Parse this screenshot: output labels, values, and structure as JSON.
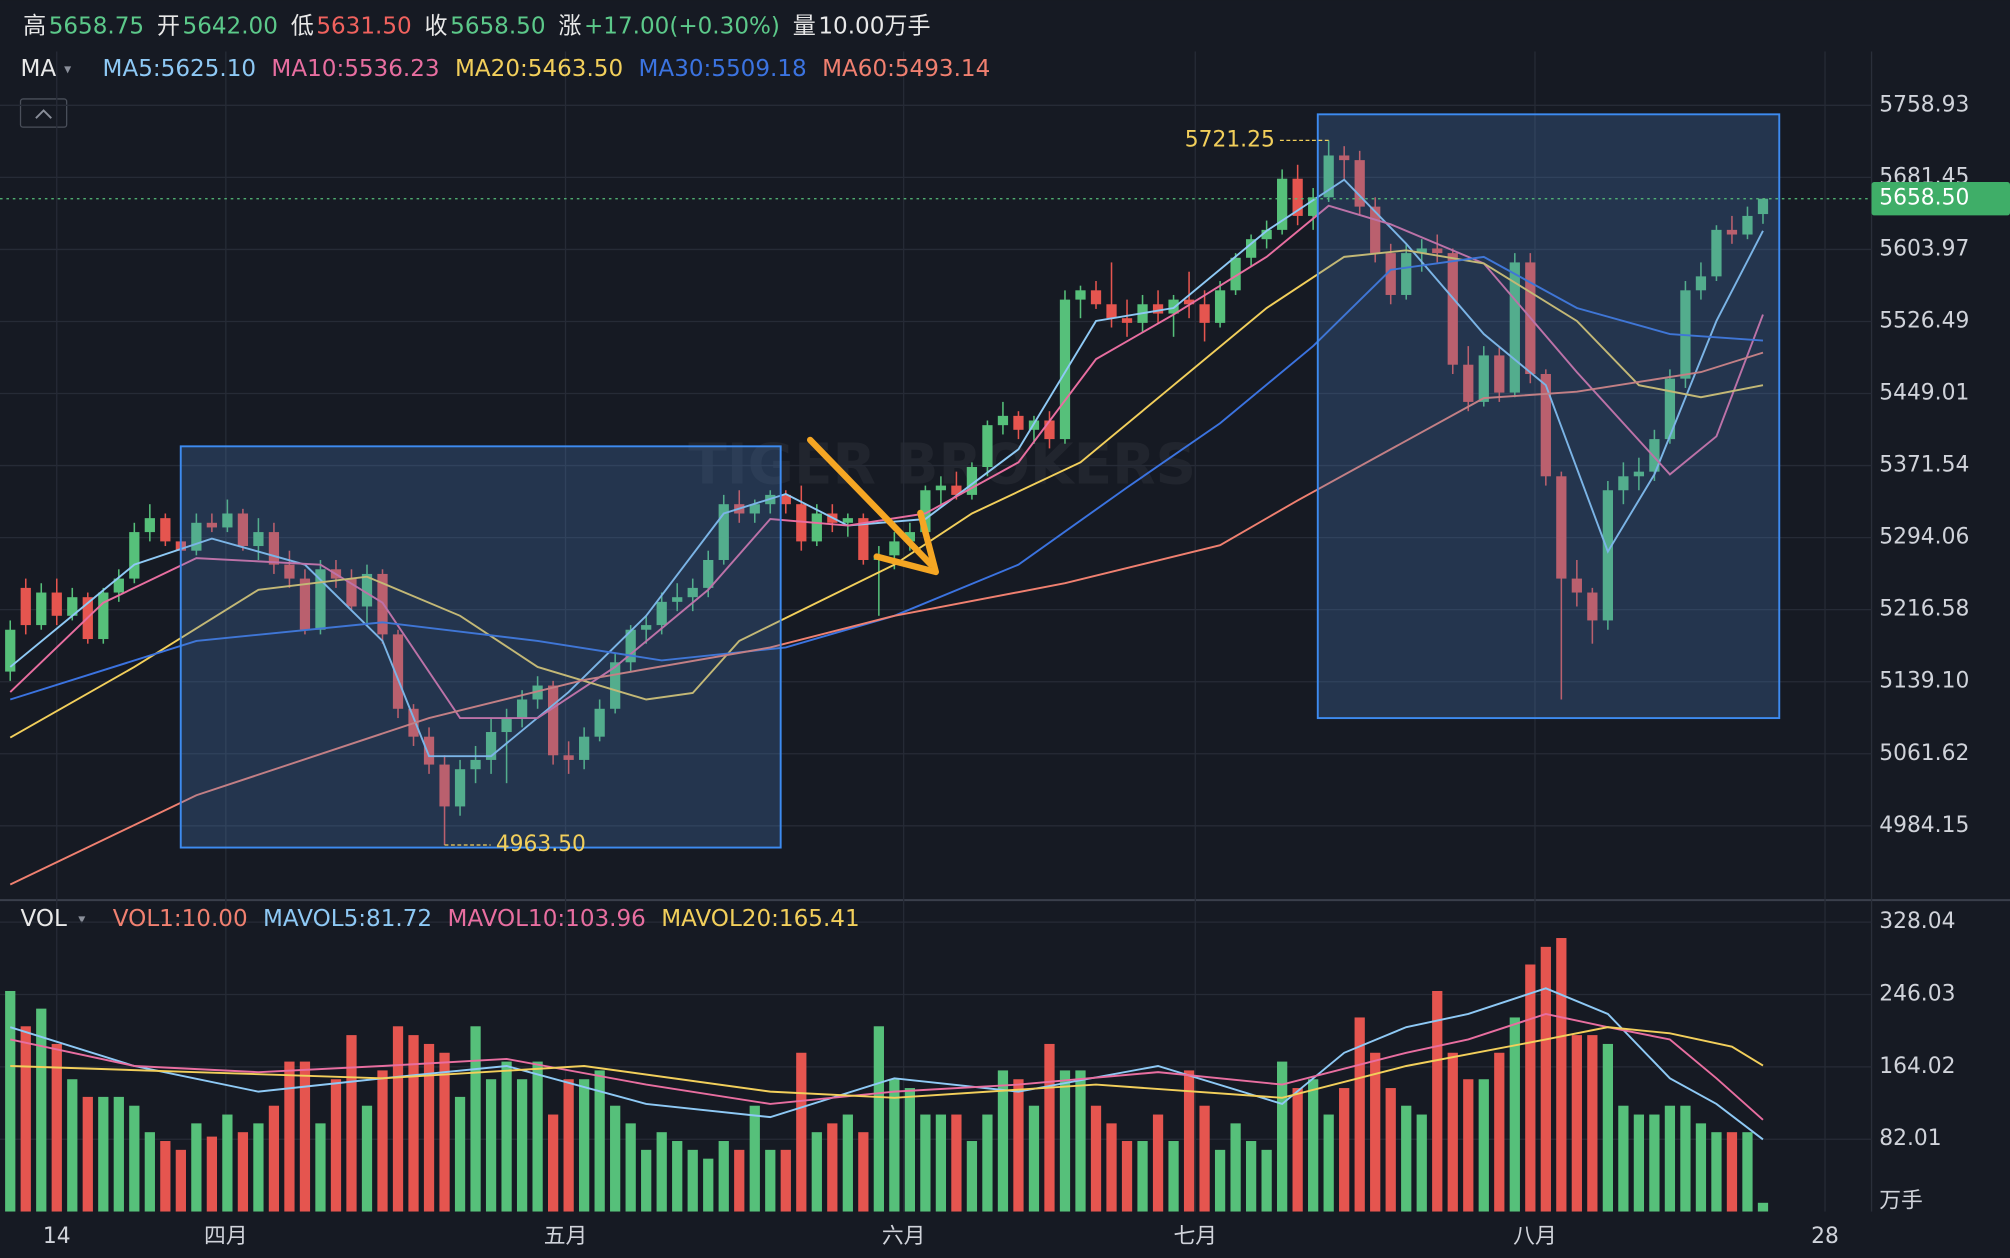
{
  "chart_data": {
    "type": "candlestick",
    "header": [
      {
        "label": "高",
        "value": "5658.75",
        "color": "#5cc98a"
      },
      {
        "label": "开",
        "value": "5642.00",
        "color": "#5cc98a"
      },
      {
        "label": "低",
        "value": "5631.50",
        "color": "#f0625e"
      },
      {
        "label": "收",
        "value": "5658.50",
        "color": "#5cc98a"
      },
      {
        "label": "涨",
        "value": "+17.00(+0.30%)",
        "color": "#5cc98a"
      },
      {
        "label": "量",
        "value": "10.00万手",
        "color": "#e8e8e8"
      }
    ],
    "indicator": "MA",
    "watermark": "TIGER BROKERS",
    "up_color": "#56c07a",
    "down_color": "#e5554f",
    "xlim": [
      -0.66,
      120
    ],
    "xticks": [
      {
        "value": 3,
        "label": "14"
      },
      {
        "value": 13.9,
        "label": "四月"
      },
      {
        "value": 35.8,
        "label": "五月"
      },
      {
        "value": 57.6,
        "label": "六月"
      },
      {
        "value": 76.4,
        "label": "七月"
      },
      {
        "value": 98.3,
        "label": "八月"
      },
      {
        "value": 117,
        "label": "28"
      }
    ],
    "ylim": [
      4907,
      5816.8
    ],
    "yticks": [
      5758.93,
      5681.45,
      5603.97,
      5526.49,
      5449.01,
      5371.54,
      5294.06,
      5216.58,
      {
        "value": 5139.1,
        "label": "5139.10"
      },
      5061.62,
      4984.15
    ],
    "grid": true,
    "last_price": {
      "value": 5658.5,
      "label": "5658.50"
    },
    "annotations": [
      {
        "x": 85,
        "value": 5721.25,
        "label": "5721.25"
      },
      {
        "x": 28,
        "value": 4963.5,
        "label": "4963.50"
      }
    ],
    "open": [
      5150,
      5240,
      5200,
      5235,
      5210,
      5230,
      5185,
      5235,
      5250,
      5300,
      5315,
      5290,
      5280,
      5310,
      5305,
      5320,
      5285,
      5300,
      5265,
      5250,
      5195,
      5260,
      5250,
      5220,
      5255,
      5190,
      5110,
      5080,
      5050,
      5005,
      5045,
      5055,
      5085,
      5100,
      5120,
      5135,
      5060,
      5055,
      5080,
      5110,
      5160,
      5195,
      5200,
      5225,
      5230,
      5240,
      5270,
      5330,
      5320,
      5330,
      5340,
      5330,
      5290,
      5320,
      5310,
      5315,
      5270,
      5275,
      5290,
      5300,
      5345,
      5350,
      5340,
      5370,
      5415,
      5425,
      5410,
      5420,
      5400,
      5550,
      5560,
      5545,
      5530,
      5525,
      5545,
      5535,
      5550,
      5545,
      5525,
      5560,
      5595,
      5615,
      5625,
      5680,
      5640,
      5660,
      5705,
      5700,
      5650,
      5600,
      5555,
      5600,
      5605,
      5600,
      5480,
      5440,
      5490,
      5450,
      5590,
      5470,
      5360,
      5250,
      5235,
      5205,
      5345,
      5360,
      5365,
      5400,
      5465,
      5560,
      5575,
      5625,
      5620,
      5642
    ],
    "high": [
      5205,
      5250,
      5245,
      5250,
      5240,
      5235,
      5240,
      5260,
      5310,
      5330,
      5320,
      5300,
      5320,
      5320,
      5335,
      5325,
      5315,
      5310,
      5280,
      5260,
      5270,
      5270,
      5260,
      5265,
      5260,
      5195,
      5115,
      5090,
      5060,
      5055,
      5070,
      5100,
      5110,
      5130,
      5145,
      5140,
      5075,
      5090,
      5120,
      5170,
      5200,
      5210,
      5235,
      5245,
      5250,
      5280,
      5340,
      5345,
      5335,
      5345,
      5345,
      5350,
      5330,
      5330,
      5320,
      5320,
      5285,
      5300,
      5310,
      5350,
      5360,
      5365,
      5375,
      5420,
      5440,
      5430,
      5425,
      5430,
      5560,
      5565,
      5570,
      5590,
      5550,
      5555,
      5560,
      5555,
      5580,
      5560,
      5570,
      5600,
      5620,
      5635,
      5690,
      5695,
      5670,
      5721.25,
      5715,
      5710,
      5660,
      5610,
      5610,
      5615,
      5620,
      5605,
      5500,
      5500,
      5500,
      5600,
      5600,
      5475,
      5365,
      5270,
      5240,
      5355,
      5375,
      5380,
      5410,
      5475,
      5570,
      5590,
      5630,
      5640,
      5650,
      5658.75
    ],
    "low": [
      5140,
      5190,
      5195,
      5200,
      5205,
      5180,
      5180,
      5225,
      5245,
      5290,
      5285,
      5270,
      5275,
      5300,
      5300,
      5280,
      5270,
      5255,
      5240,
      5190,
      5190,
      5240,
      5215,
      5200,
      5180,
      5100,
      5070,
      5040,
      4963.5,
      4995,
      5030,
      5040,
      5030,
      5090,
      5110,
      5050,
      5040,
      5045,
      5075,
      5105,
      5150,
      5180,
      5190,
      5215,
      5215,
      5230,
      5265,
      5310,
      5310,
      5320,
      5320,
      5280,
      5285,
      5300,
      5295,
      5265,
      5210,
      5260,
      5280,
      5295,
      5330,
      5335,
      5335,
      5360,
      5405,
      5400,
      5395,
      5390,
      5395,
      5530,
      5540,
      5520,
      5510,
      5515,
      5525,
      5510,
      5530,
      5505,
      5520,
      5555,
      5585,
      5605,
      5620,
      5630,
      5625,
      5655,
      5680,
      5640,
      5590,
      5545,
      5550,
      5580,
      5590,
      5470,
      5430,
      5435,
      5440,
      5445,
      5460,
      5350,
      5120,
      5220,
      5180,
      5195,
      5330,
      5345,
      5355,
      5395,
      5455,
      5550,
      5570,
      5610,
      5615,
      5631.5
    ],
    "close": [
      5195,
      5200,
      5235,
      5210,
      5230,
      5185,
      5235,
      5250,
      5300,
      5315,
      5290,
      5280,
      5310,
      5305,
      5320,
      5285,
      5300,
      5265,
      5250,
      5195,
      5260,
      5250,
      5220,
      5255,
      5190,
      5110,
      5080,
      5050,
      5005,
      5045,
      5055,
      5085,
      5100,
      5120,
      5135,
      5060,
      5055,
      5080,
      5110,
      5160,
      5195,
      5200,
      5225,
      5230,
      5240,
      5270,
      5330,
      5320,
      5330,
      5340,
      5330,
      5290,
      5320,
      5310,
      5315,
      5270,
      5275,
      5290,
      5300,
      5345,
      5350,
      5340,
      5370,
      5415,
      5425,
      5410,
      5420,
      5400,
      5550,
      5560,
      5545,
      5530,
      5525,
      5545,
      5535,
      5550,
      5545,
      5525,
      5560,
      5595,
      5615,
      5625,
      5680,
      5640,
      5660,
      5705,
      5700,
      5650,
      5600,
      5555,
      5600,
      5605,
      5600,
      5480,
      5440,
      5490,
      5450,
      5590,
      5470,
      5360,
      5250,
      5235,
      5205,
      5345,
      5360,
      5365,
      5400,
      5465,
      5560,
      5575,
      5625,
      5620,
      5640,
      5658.5
    ],
    "ma_series": [
      {
        "label": "MA5:5625.10",
        "color": "#8ec9f5",
        "x": [
          0,
          8,
          13,
          19,
          24,
          27,
          31,
          36,
          41,
          46,
          50,
          54,
          59,
          65,
          70,
          75,
          81,
          86,
          90,
          95,
          99,
          103,
          106,
          110,
          113
        ],
        "values": [
          5155,
          5265,
          5293,
          5265,
          5183,
          5059,
          5059,
          5128,
          5210,
          5320,
          5341,
          5307,
          5314,
          5389,
          5527,
          5541,
          5624,
          5679,
          5610,
          5513,
          5458,
          5279,
          5362,
          5527,
          5624
        ]
      },
      {
        "label": "MA10:5536.23",
        "color": "#e86ea0",
        "x": [
          0,
          6,
          12,
          20,
          24,
          29,
          34,
          39,
          45,
          49,
          54,
          59,
          65,
          70,
          75,
          81,
          85,
          89,
          95,
          101,
          107,
          110,
          113
        ],
        "values": [
          5128,
          5224,
          5272,
          5265,
          5224,
          5100,
          5100,
          5155,
          5238,
          5314,
          5307,
          5320,
          5375,
          5486,
          5534,
          5596,
          5651,
          5631,
          5589,
          5472,
          5362,
          5403,
          5534
        ]
      },
      {
        "label": "MA20:5463.50",
        "color": "#f2cf5b",
        "x": [
          0,
          8,
          16,
          23,
          29,
          34,
          41,
          44,
          47,
          52,
          57,
          62,
          69,
          75,
          81,
          86,
          90,
          95,
          101,
          105,
          109,
          113
        ],
        "values": [
          5079,
          5155,
          5238,
          5252,
          5210,
          5155,
          5120,
          5127,
          5183,
          5224,
          5265,
          5320,
          5375,
          5458,
          5541,
          5596,
          5603,
          5589,
          5527,
          5458,
          5445,
          5458
        ]
      },
      {
        "label": "MA30:5509.18",
        "color": "#3b73e0",
        "x": [
          0,
          12,
          24,
          34,
          42,
          50,
          57,
          65,
          72,
          78,
          84,
          89,
          95,
          101,
          107,
          113
        ],
        "values": [
          5120,
          5183,
          5203,
          5183,
          5162,
          5176,
          5210,
          5265,
          5348,
          5417,
          5500,
          5582,
          5596,
          5541,
          5513,
          5506
        ]
      },
      {
        "label": "MA60:5493.14",
        "color": "#f08070",
        "x": [
          0,
          12,
          27,
          37,
          49,
          57,
          68,
          78,
          83,
          89,
          95,
          101,
          109,
          113
        ],
        "values": [
          4921,
          5017,
          5100,
          5141,
          5176,
          5210,
          5245,
          5286,
          5334,
          5389,
          5444,
          5451,
          5472,
          5493
        ]
      }
    ],
    "volume": {
      "indicator": "VOL",
      "unit": "万手",
      "legend": "VOL1:10.00",
      "legend_color": "#f08070",
      "ylim": [
        0,
        351.5
      ],
      "yticks": [
        328.04,
        246.03,
        164.02,
        82.01
      ],
      "values": [
        250,
        210,
        230,
        190,
        150,
        130,
        130,
        130,
        120,
        90,
        80,
        70,
        100,
        85,
        110,
        90,
        100,
        120,
        170,
        170,
        100,
        150,
        200,
        120,
        160,
        210,
        200,
        190,
        180,
        130,
        210,
        150,
        170,
        150,
        170,
        110,
        150,
        150,
        160,
        120,
        100,
        70,
        90,
        80,
        70,
        60,
        80,
        70,
        120,
        70,
        70,
        180,
        90,
        100,
        110,
        90,
        210,
        150,
        140,
        110,
        110,
        110,
        80,
        110,
        160,
        150,
        120,
        190,
        160,
        160,
        120,
        100,
        80,
        80,
        110,
        80,
        160,
        120,
        70,
        100,
        80,
        70,
        170,
        140,
        150,
        110,
        140,
        220,
        180,
        140,
        120,
        110,
        250,
        180,
        150,
        150,
        180,
        220,
        280,
        300,
        310,
        200,
        200,
        190,
        120,
        110,
        110,
        120,
        120,
        100,
        90,
        90,
        90,
        10
      ],
      "series": [
        {
          "label": "MAVOL5:81.72",
          "color": "#8ec9f5",
          "x": [
            0,
            8,
            16,
            24,
            32,
            41,
            49,
            57,
            65,
            74,
            82,
            86,
            90,
            94,
            99,
            103,
            107,
            110,
            113
          ],
          "values": [
            209,
            165,
            136,
            151,
            165,
            122,
            107,
            151,
            136,
            165,
            122,
            180,
            209,
            224,
            253,
            224,
            151,
            122,
            81.72
          ]
        },
        {
          "label": "MAVOL10:103.96",
          "color": "#e86ea0",
          "x": [
            0,
            8,
            16,
            24,
            32,
            41,
            49,
            57,
            65,
            74,
            82,
            90,
            94,
            99,
            103,
            107,
            110,
            113
          ],
          "values": [
            195,
            165,
            158,
            165,
            173,
            144,
            122,
            136,
            144,
            158,
            144,
            180,
            195,
            224,
            209,
            195,
            151,
            103.96
          ]
        },
        {
          "label": "MAVOL20:165.41",
          "color": "#f2cf5b",
          "x": [
            0,
            12,
            24,
            37,
            49,
            57,
            70,
            82,
            90,
            99,
            103,
            107,
            111,
            113
          ],
          "values": [
            165,
            158,
            151,
            165,
            136,
            129,
            144,
            129,
            165,
            195,
            209,
            202,
            187,
            165.41
          ]
        }
      ]
    }
  }
}
